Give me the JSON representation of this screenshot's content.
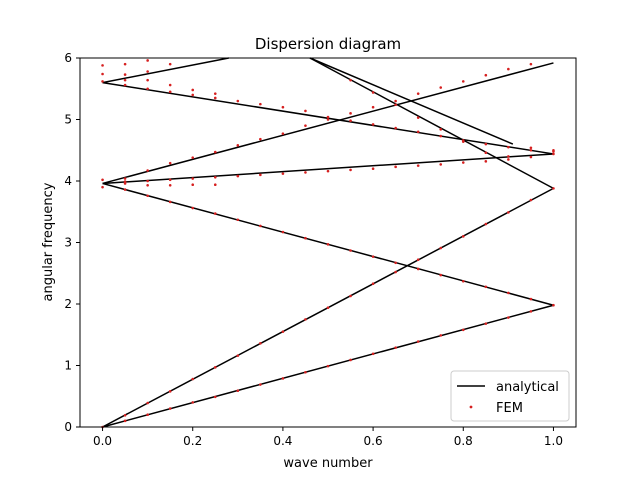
{
  "chart_data": {
    "type": "line",
    "title": "Dispersion diagram",
    "xlabel": "wave number",
    "ylabel": "angular frequency",
    "xlim": [
      -0.05,
      1.05
    ],
    "ylim": [
      0,
      6
    ],
    "x_ticks": [
      0.0,
      0.2,
      0.4,
      0.6,
      0.8,
      1.0
    ],
    "x_tick_labels": [
      "0.0",
      "0.2",
      "0.4",
      "0.6",
      "0.8",
      "1.0"
    ],
    "y_ticks": [
      0,
      1,
      2,
      3,
      4,
      5,
      6
    ],
    "y_tick_labels": [
      "0",
      "1",
      "2",
      "3",
      "4",
      "5",
      "6"
    ],
    "grid": false,
    "legend_position": "lower-right",
    "legend": [
      {
        "label": "analytical",
        "kind": "line",
        "color": "#000000"
      },
      {
        "label": "FEM",
        "kind": "marker",
        "color": "#d62020"
      }
    ],
    "analytical_series": [
      {
        "name": "analytical",
        "x": [
          0.0,
          1.0
        ],
        "y": [
          0.0,
          1.98
        ]
      },
      {
        "name": "analytical",
        "x": [
          0.0,
          1.0
        ],
        "y": [
          0.0,
          3.88
        ]
      },
      {
        "name": "analytical",
        "x": [
          0.0,
          1.0
        ],
        "y": [
          3.96,
          1.98
        ]
      },
      {
        "name": "analytical",
        "x": [
          0.0,
          1.0
        ],
        "y": [
          3.96,
          4.44
        ]
      },
      {
        "name": "analytical",
        "x": [
          0.0,
          1.0
        ],
        "y": [
          3.96,
          5.92
        ]
      },
      {
        "name": "analytical",
        "x": [
          0.0,
          1.0
        ],
        "y": [
          5.6,
          4.44
        ]
      },
      {
        "name": "analytical",
        "x": [
          0.0,
          0.28
        ],
        "y": [
          5.6,
          6.0
        ]
      },
      {
        "name": "analytical",
        "x": [
          0.46,
          1.0
        ],
        "y": [
          6.0,
          3.88
        ]
      },
      {
        "name": "analytical",
        "x": [
          0.46,
          0.91
        ],
        "y": [
          6.0,
          4.6
        ]
      }
    ],
    "fem_points": [
      {
        "x": 0.0,
        "y": 0.0
      },
      {
        "x": 0.05,
        "y": 0.1
      },
      {
        "x": 0.1,
        "y": 0.2
      },
      {
        "x": 0.15,
        "y": 0.3
      },
      {
        "x": 0.2,
        "y": 0.4
      },
      {
        "x": 0.25,
        "y": 0.49
      },
      {
        "x": 0.3,
        "y": 0.59
      },
      {
        "x": 0.35,
        "y": 0.69
      },
      {
        "x": 0.4,
        "y": 0.79
      },
      {
        "x": 0.45,
        "y": 0.89
      },
      {
        "x": 0.5,
        "y": 0.99
      },
      {
        "x": 0.55,
        "y": 1.09
      },
      {
        "x": 0.6,
        "y": 1.19
      },
      {
        "x": 0.65,
        "y": 1.29
      },
      {
        "x": 0.7,
        "y": 1.39
      },
      {
        "x": 0.75,
        "y": 1.49
      },
      {
        "x": 0.8,
        "y": 1.58
      },
      {
        "x": 0.85,
        "y": 1.68
      },
      {
        "x": 0.9,
        "y": 1.78
      },
      {
        "x": 0.95,
        "y": 1.88
      },
      {
        "x": 1.0,
        "y": 1.98
      },
      {
        "x": 0.05,
        "y": 0.19
      },
      {
        "x": 0.1,
        "y": 0.39
      },
      {
        "x": 0.15,
        "y": 0.58
      },
      {
        "x": 0.2,
        "y": 0.78
      },
      {
        "x": 0.25,
        "y": 0.97
      },
      {
        "x": 0.3,
        "y": 1.16
      },
      {
        "x": 0.35,
        "y": 1.36
      },
      {
        "x": 0.4,
        "y": 1.55
      },
      {
        "x": 0.45,
        "y": 1.75
      },
      {
        "x": 0.5,
        "y": 1.94
      },
      {
        "x": 0.55,
        "y": 2.13
      },
      {
        "x": 0.6,
        "y": 2.33
      },
      {
        "x": 0.65,
        "y": 2.52
      },
      {
        "x": 0.7,
        "y": 2.72
      },
      {
        "x": 0.75,
        "y": 2.91
      },
      {
        "x": 0.8,
        "y": 3.1
      },
      {
        "x": 0.85,
        "y": 3.3
      },
      {
        "x": 0.9,
        "y": 3.49
      },
      {
        "x": 0.95,
        "y": 3.69
      },
      {
        "x": 1.0,
        "y": 3.88
      },
      {
        "x": 0.0,
        "y": 3.9
      },
      {
        "x": 0.05,
        "y": 3.86
      },
      {
        "x": 0.1,
        "y": 3.76
      },
      {
        "x": 0.15,
        "y": 3.66
      },
      {
        "x": 0.2,
        "y": 3.56
      },
      {
        "x": 0.25,
        "y": 3.47
      },
      {
        "x": 0.3,
        "y": 3.37
      },
      {
        "x": 0.35,
        "y": 3.27
      },
      {
        "x": 0.4,
        "y": 3.17
      },
      {
        "x": 0.45,
        "y": 3.07
      },
      {
        "x": 0.5,
        "y": 2.97
      },
      {
        "x": 0.55,
        "y": 2.87
      },
      {
        "x": 0.6,
        "y": 2.77
      },
      {
        "x": 0.65,
        "y": 2.67
      },
      {
        "x": 0.7,
        "y": 2.57
      },
      {
        "x": 0.75,
        "y": 2.47
      },
      {
        "x": 0.8,
        "y": 2.37
      },
      {
        "x": 0.85,
        "y": 2.28
      },
      {
        "x": 0.9,
        "y": 2.18
      },
      {
        "x": 0.95,
        "y": 2.08
      },
      {
        "x": 0.0,
        "y": 4.02
      },
      {
        "x": 0.05,
        "y": 3.99
      },
      {
        "x": 0.1,
        "y": 4.0
      },
      {
        "x": 0.15,
        "y": 4.02
      },
      {
        "x": 0.2,
        "y": 4.04
      },
      {
        "x": 0.25,
        "y": 4.06
      },
      {
        "x": 0.3,
        "y": 4.08
      },
      {
        "x": 0.35,
        "y": 4.1
      },
      {
        "x": 0.4,
        "y": 4.12
      },
      {
        "x": 0.45,
        "y": 4.14
      },
      {
        "x": 0.5,
        "y": 4.16
      },
      {
        "x": 0.55,
        "y": 4.18
      },
      {
        "x": 0.6,
        "y": 4.2
      },
      {
        "x": 0.65,
        "y": 4.23
      },
      {
        "x": 0.7,
        "y": 4.25
      },
      {
        "x": 0.75,
        "y": 4.27
      },
      {
        "x": 0.8,
        "y": 4.3
      },
      {
        "x": 0.85,
        "y": 4.32
      },
      {
        "x": 0.9,
        "y": 4.35
      },
      {
        "x": 0.95,
        "y": 4.39
      },
      {
        "x": 1.0,
        "y": 4.44
      },
      {
        "x": 0.05,
        "y": 4.04
      },
      {
        "x": 0.1,
        "y": 4.17
      },
      {
        "x": 0.15,
        "y": 4.29
      },
      {
        "x": 0.2,
        "y": 4.38
      },
      {
        "x": 0.25,
        "y": 4.47
      },
      {
        "x": 0.3,
        "y": 4.58
      },
      {
        "x": 0.35,
        "y": 4.68
      },
      {
        "x": 0.4,
        "y": 4.77
      },
      {
        "x": 0.45,
        "y": 4.9
      },
      {
        "x": 0.5,
        "y": 5.0
      },
      {
        "x": 0.55,
        "y": 5.1
      },
      {
        "x": 0.6,
        "y": 5.2
      },
      {
        "x": 0.65,
        "y": 5.3
      },
      {
        "x": 0.7,
        "y": 5.42
      },
      {
        "x": 0.75,
        "y": 5.52
      },
      {
        "x": 0.8,
        "y": 5.62
      },
      {
        "x": 0.85,
        "y": 5.72
      },
      {
        "x": 0.9,
        "y": 5.82
      },
      {
        "x": 0.95,
        "y": 5.9
      },
      {
        "x": 0.0,
        "y": 5.62
      },
      {
        "x": 0.05,
        "y": 5.56
      },
      {
        "x": 0.1,
        "y": 5.5
      },
      {
        "x": 0.15,
        "y": 5.45
      },
      {
        "x": 0.2,
        "y": 5.4
      },
      {
        "x": 0.25,
        "y": 5.35
      },
      {
        "x": 0.3,
        "y": 5.3
      },
      {
        "x": 0.35,
        "y": 5.25
      },
      {
        "x": 0.4,
        "y": 5.2
      },
      {
        "x": 0.45,
        "y": 5.14
      },
      {
        "x": 0.5,
        "y": 5.04
      },
      {
        "x": 0.55,
        "y": 4.98
      },
      {
        "x": 0.6,
        "y": 4.92
      },
      {
        "x": 0.65,
        "y": 4.86
      },
      {
        "x": 0.7,
        "y": 4.8
      },
      {
        "x": 0.75,
        "y": 4.73
      },
      {
        "x": 0.8,
        "y": 4.66
      },
      {
        "x": 0.85,
        "y": 4.6
      },
      {
        "x": 0.9,
        "y": 4.55
      },
      {
        "x": 0.95,
        "y": 4.5
      },
      {
        "x": 1.0,
        "y": 4.48
      },
      {
        "x": 0.0,
        "y": 5.74
      },
      {
        "x": 0.05,
        "y": 5.73
      },
      {
        "x": 0.1,
        "y": 5.78
      },
      {
        "x": 0.15,
        "y": 5.9
      },
      {
        "x": 0.0,
        "y": 5.88
      },
      {
        "x": 0.05,
        "y": 5.9
      },
      {
        "x": 0.1,
        "y": 5.96
      },
      {
        "x": 0.1,
        "y": 5.64
      },
      {
        "x": 0.15,
        "y": 5.56
      },
      {
        "x": 0.2,
        "y": 5.48
      },
      {
        "x": 0.25,
        "y": 5.42
      },
      {
        "x": 0.05,
        "y": 5.64
      },
      {
        "x": 0.1,
        "y": 3.93
      },
      {
        "x": 0.15,
        "y": 3.93
      },
      {
        "x": 0.2,
        "y": 3.94
      },
      {
        "x": 0.25,
        "y": 3.94
      },
      {
        "x": 0.05,
        "y": 3.96
      },
      {
        "x": 0.55,
        "y": 5.64
      },
      {
        "x": 0.6,
        "y": 5.44
      },
      {
        "x": 0.65,
        "y": 5.24
      },
      {
        "x": 0.7,
        "y": 5.03
      },
      {
        "x": 0.75,
        "y": 4.84
      },
      {
        "x": 0.8,
        "y": 4.64
      },
      {
        "x": 0.85,
        "y": 4.46
      },
      {
        "x": 0.9,
        "y": 4.4
      },
      {
        "x": 0.95,
        "y": 4.54
      },
      {
        "x": 1.0,
        "y": 4.5
      }
    ]
  }
}
